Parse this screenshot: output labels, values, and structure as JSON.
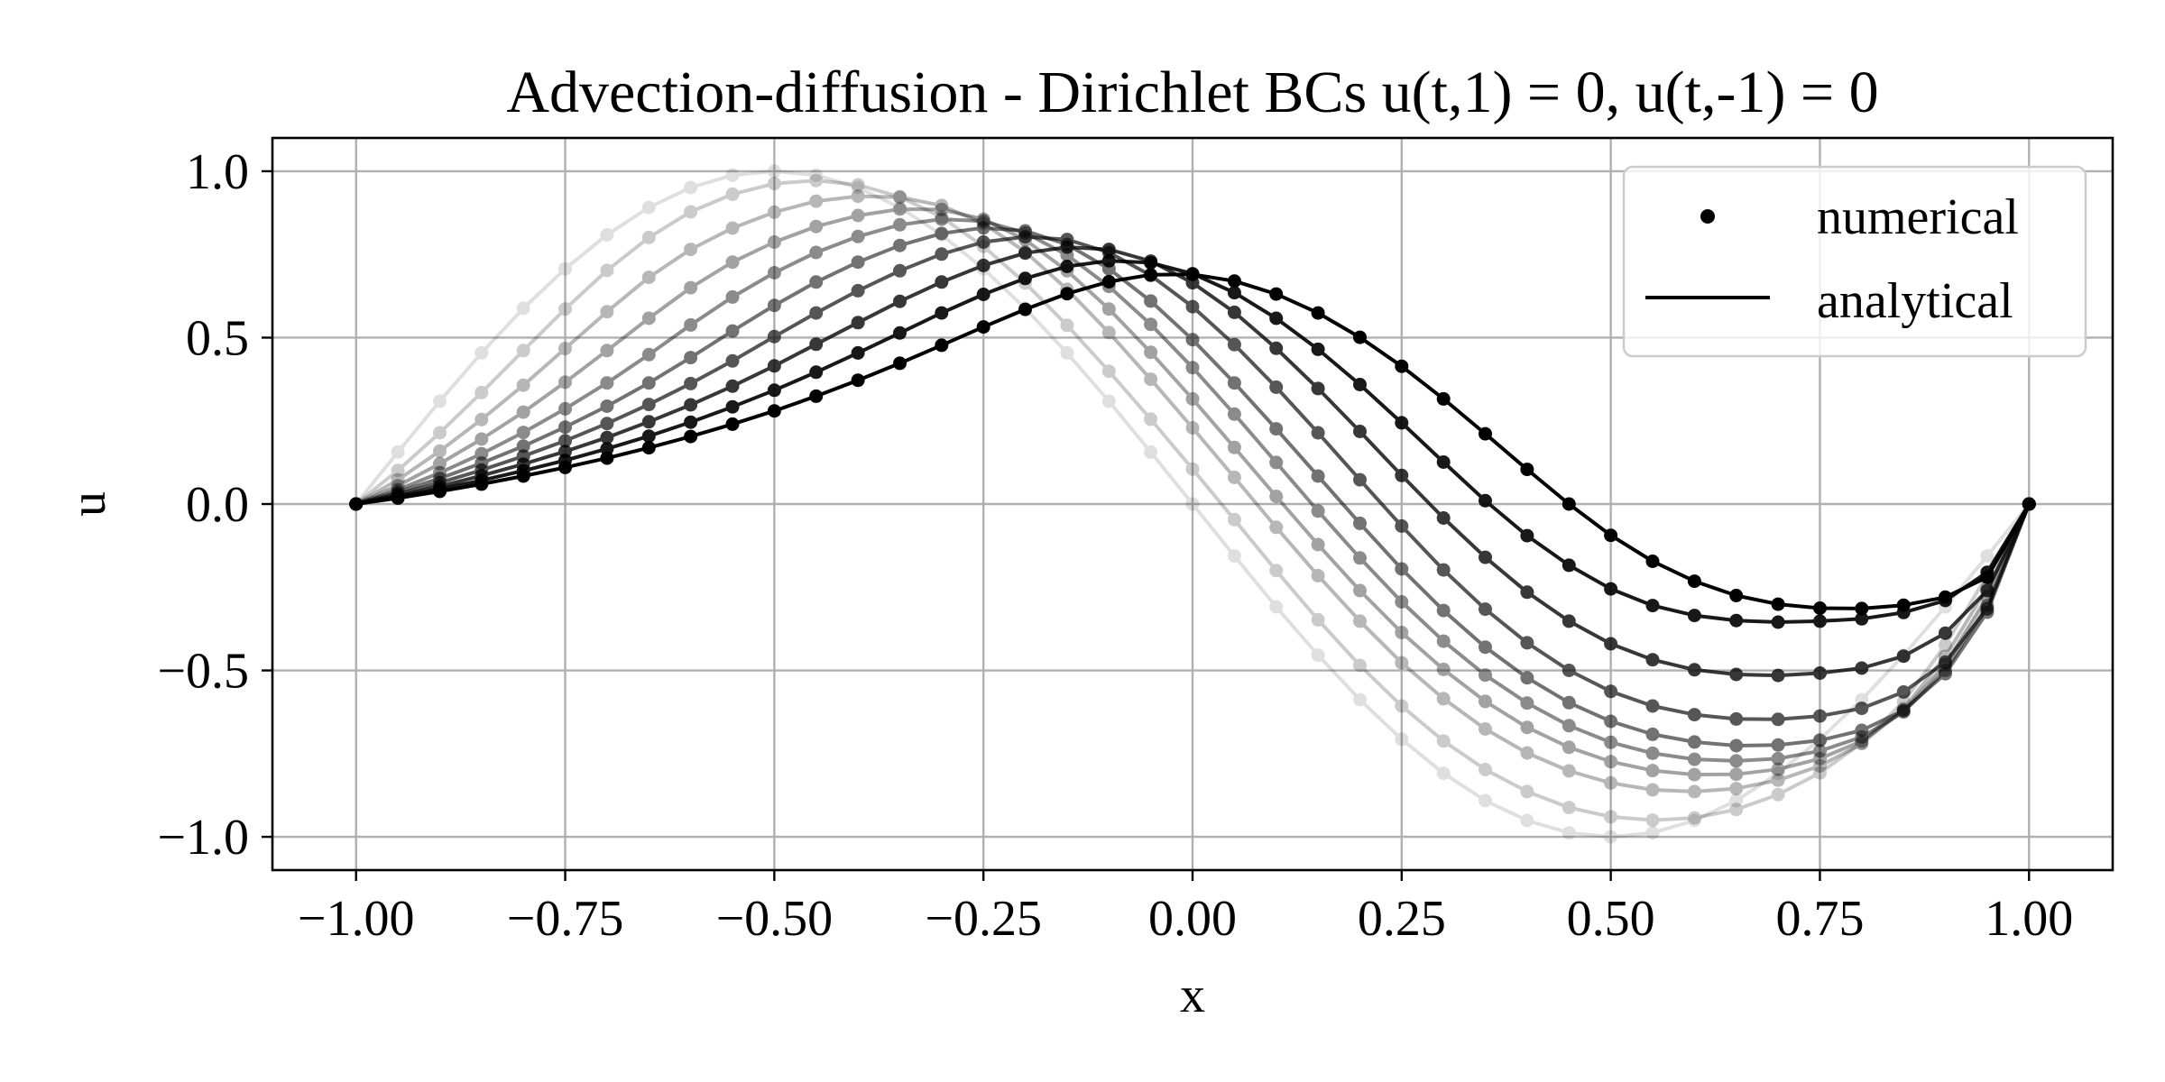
{
  "chart_data": {
    "type": "line",
    "title": "Advection-diffusion - Dirichlet BCs u(t,1) = 0, u(t,-1) = 0",
    "xlabel": "x",
    "ylabel": "u",
    "xlim": [
      -1.1,
      1.1
    ],
    "ylim": [
      -1.1,
      1.1
    ],
    "xticks": [
      -1.0,
      -0.75,
      -0.5,
      -0.25,
      0.0,
      0.25,
      0.5,
      0.75,
      1.0
    ],
    "xtick_labels": [
      "−1.00",
      "−0.75",
      "−0.50",
      "−0.25",
      "0.00",
      "0.25",
      "0.50",
      "0.75",
      "1.00"
    ],
    "yticks": [
      1.0,
      0.5,
      0.0,
      -0.5,
      -1.0
    ],
    "ytick_labels": [
      "1.0",
      "0.5",
      "0.0",
      "−0.5",
      "−1.0"
    ],
    "grid": true,
    "legend": {
      "position": "top-right",
      "entries": [
        {
          "label": "numerical",
          "marker": "dot"
        },
        {
          "label": "analytical",
          "marker": "line"
        }
      ]
    },
    "colors": {
      "lines": "#000000",
      "grid": "#b0b0b0"
    },
    "opacity": [
      0.12,
      0.2,
      0.28,
      0.36,
      0.45,
      0.55,
      0.66,
      0.78,
      0.9,
      1.0
    ],
    "x": [
      -1.0,
      -0.95,
      -0.9,
      -0.85,
      -0.8,
      -0.75,
      -0.7,
      -0.65,
      -0.6,
      -0.55,
      -0.5,
      -0.45,
      -0.4,
      -0.35,
      -0.3,
      -0.25,
      -0.2,
      -0.15,
      -0.1,
      -0.05,
      0.0,
      0.05,
      0.1,
      0.15,
      0.2,
      0.25,
      0.3,
      0.35,
      0.4,
      0.45,
      0.5,
      0.55,
      0.6,
      0.65,
      0.7,
      0.75,
      0.8,
      0.85,
      0.9,
      0.95,
      1.0
    ],
    "series": [
      {
        "values": [
          0.0,
          0.156,
          0.309,
          0.454,
          0.588,
          0.707,
          0.809,
          0.891,
          0.951,
          0.988,
          1.0,
          0.988,
          0.951,
          0.891,
          0.809,
          0.707,
          0.588,
          0.454,
          0.309,
          0.156,
          0.0,
          -0.156,
          -0.309,
          -0.454,
          -0.588,
          -0.707,
          -0.809,
          -0.891,
          -0.951,
          -0.988,
          -1.0,
          -0.988,
          -0.951,
          -0.891,
          -0.809,
          -0.707,
          -0.588,
          -0.454,
          -0.309,
          -0.156,
          0.0
        ]
      },
      {
        "values": [
          0.0,
          0.101,
          0.214,
          0.335,
          0.461,
          0.586,
          0.702,
          0.801,
          0.878,
          0.931,
          0.963,
          0.972,
          0.959,
          0.923,
          0.862,
          0.774,
          0.664,
          0.537,
          0.399,
          0.255,
          0.105,
          -0.047,
          -0.2,
          -0.348,
          -0.485,
          -0.607,
          -0.712,
          -0.798,
          -0.864,
          -0.912,
          -0.94,
          -0.95,
          -0.943,
          -0.918,
          -0.873,
          -0.808,
          -0.718,
          -0.594,
          -0.424,
          -0.214,
          0.0
        ]
      },
      {
        "values": [
          0.0,
          0.073,
          0.159,
          0.254,
          0.357,
          0.467,
          0.578,
          0.681,
          0.765,
          0.829,
          0.877,
          0.91,
          0.925,
          0.922,
          0.897,
          0.843,
          0.758,
          0.645,
          0.515,
          0.375,
          0.229,
          0.08,
          -0.07,
          -0.215,
          -0.352,
          -0.477,
          -0.585,
          -0.676,
          -0.748,
          -0.802,
          -0.838,
          -0.859,
          -0.864,
          -0.855,
          -0.83,
          -0.787,
          -0.72,
          -0.615,
          -0.458,
          -0.252,
          0.0
        ]
      },
      {
        "values": [
          0.0,
          0.055,
          0.121,
          0.195,
          0.276,
          0.366,
          0.461,
          0.558,
          0.65,
          0.727,
          0.787,
          0.834,
          0.867,
          0.886,
          0.885,
          0.856,
          0.794,
          0.701,
          0.586,
          0.456,
          0.316,
          0.17,
          0.023,
          -0.122,
          -0.26,
          -0.386,
          -0.497,
          -0.593,
          -0.671,
          -0.731,
          -0.774,
          -0.801,
          -0.813,
          -0.812,
          -0.797,
          -0.765,
          -0.712,
          -0.622,
          -0.482,
          -0.28,
          0.0
        ]
      },
      {
        "values": [
          0.0,
          0.043,
          0.094,
          0.151,
          0.215,
          0.286,
          0.364,
          0.449,
          0.538,
          0.622,
          0.695,
          0.756,
          0.804,
          0.839,
          0.856,
          0.85,
          0.815,
          0.748,
          0.654,
          0.54,
          0.41,
          0.27,
          0.125,
          -0.021,
          -0.162,
          -0.294,
          -0.412,
          -0.514,
          -0.598,
          -0.666,
          -0.716,
          -0.749,
          -0.767,
          -0.772,
          -0.765,
          -0.742,
          -0.7,
          -0.625,
          -0.5,
          -0.305,
          0.0
        ]
      },
      {
        "values": [
          0.0,
          0.036,
          0.077,
          0.123,
          0.174,
          0.231,
          0.294,
          0.364,
          0.44,
          0.52,
          0.597,
          0.667,
          0.727,
          0.777,
          0.813,
          0.83,
          0.821,
          0.78,
          0.707,
          0.61,
          0.494,
          0.364,
          0.226,
          0.084,
          -0.058,
          -0.195,
          -0.32,
          -0.43,
          -0.522,
          -0.597,
          -0.653,
          -0.692,
          -0.715,
          -0.726,
          -0.724,
          -0.71,
          -0.68,
          -0.62,
          -0.51,
          -0.325,
          0.0
        ]
      },
      {
        "values": [
          0.0,
          0.03,
          0.064,
          0.102,
          0.144,
          0.19,
          0.242,
          0.299,
          0.362,
          0.43,
          0.503,
          0.574,
          0.641,
          0.701,
          0.751,
          0.787,
          0.803,
          0.795,
          0.756,
          0.687,
          0.593,
          0.479,
          0.351,
          0.214,
          0.073,
          -0.066,
          -0.198,
          -0.316,
          -0.417,
          -0.5,
          -0.563,
          -0.607,
          -0.633,
          -0.646,
          -0.647,
          -0.637,
          -0.614,
          -0.565,
          -0.475,
          -0.315,
          0.0
        ]
      },
      {
        "values": [
          0.0,
          0.025,
          0.053,
          0.085,
          0.12,
          0.158,
          0.2,
          0.247,
          0.298,
          0.354,
          0.415,
          0.48,
          0.545,
          0.609,
          0.667,
          0.717,
          0.754,
          0.772,
          0.765,
          0.73,
          0.665,
          0.576,
          0.468,
          0.347,
          0.218,
          0.086,
          -0.042,
          -0.16,
          -0.265,
          -0.352,
          -0.42,
          -0.468,
          -0.498,
          -0.512,
          -0.515,
          -0.508,
          -0.493,
          -0.457,
          -0.388,
          -0.26,
          0.0
        ]
      },
      {
        "values": [
          0.0,
          0.021,
          0.045,
          0.071,
          0.1,
          0.131,
          0.166,
          0.204,
          0.246,
          0.292,
          0.342,
          0.396,
          0.454,
          0.514,
          0.574,
          0.63,
          0.678,
          0.714,
          0.731,
          0.725,
          0.692,
          0.635,
          0.558,
          0.465,
          0.359,
          0.244,
          0.126,
          0.01,
          -0.095,
          -0.184,
          -0.255,
          -0.305,
          -0.335,
          -0.35,
          -0.355,
          -0.352,
          -0.345,
          -0.326,
          -0.29,
          -0.205,
          0.0
        ]
      },
      {
        "values": [
          0.0,
          0.018,
          0.038,
          0.06,
          0.084,
          0.11,
          0.138,
          0.169,
          0.203,
          0.24,
          0.28,
          0.324,
          0.372,
          0.423,
          0.477,
          0.532,
          0.585,
          0.632,
          0.668,
          0.689,
          0.69,
          0.67,
          0.631,
          0.574,
          0.501,
          0.414,
          0.316,
          0.211,
          0.104,
          0.0,
          -0.094,
          -0.172,
          -0.232,
          -0.275,
          -0.301,
          -0.313,
          -0.314,
          -0.304,
          -0.28,
          -0.22,
          0.0
        ]
      }
    ]
  }
}
